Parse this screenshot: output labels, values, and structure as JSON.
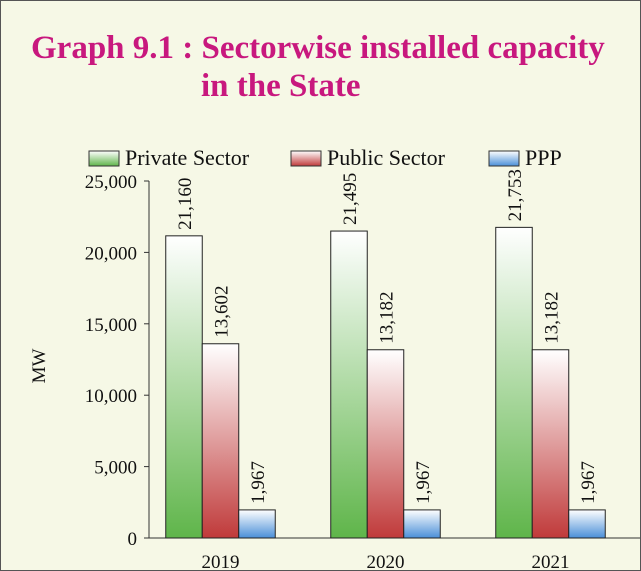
{
  "chart_data": {
    "type": "bar",
    "title": "Graph 9.1 : Sectorwise installed capacity in the State",
    "y_label": "MW",
    "categories": [
      "2019",
      "2020",
      "2021"
    ],
    "series": [
      {
        "name": "Private Sector",
        "color": "#5fb54a",
        "values": [
          21160,
          21495,
          21753
        ],
        "value_labels": [
          "21,160",
          "21,495",
          "21,753"
        ]
      },
      {
        "name": "Public Sector",
        "color": "#c03a3a",
        "values": [
          13602,
          13182,
          13182
        ],
        "value_labels": [
          "13,602",
          "13,182",
          "13,182"
        ]
      },
      {
        "name": "PPP",
        "color": "#4a8fd8",
        "values": [
          1967,
          1967,
          1967
        ],
        "value_labels": [
          "1,967",
          "1,967",
          "1,967"
        ]
      }
    ],
    "ylim": [
      0,
      25000
    ],
    "yticks": [
      0,
      {
        "value": 5000,
        "label": "5,000"
      },
      {
        "value": 10000,
        "label": "10,000"
      },
      {
        "value": 15000,
        "label": "15,000"
      },
      {
        "value": 20000,
        "label": "20,000"
      },
      {
        "value": 25000,
        "label": "25,000"
      }
    ],
    "legend": "top"
  }
}
